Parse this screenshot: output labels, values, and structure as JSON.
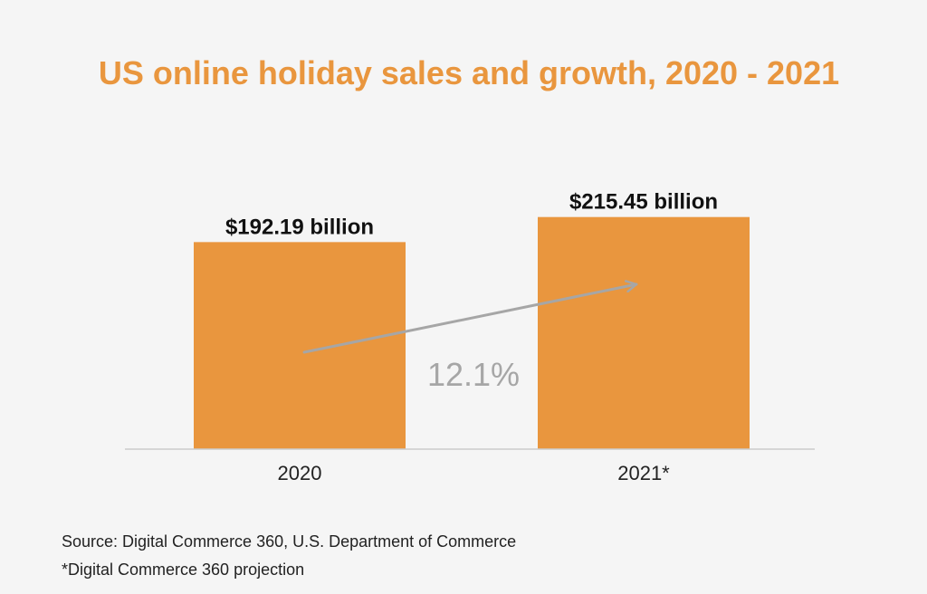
{
  "chart_data": {
    "type": "bar",
    "title": "US online holiday sales and growth, 2020 - 2021",
    "categories": [
      "2020",
      "2021*"
    ],
    "values": [
      192.19,
      215.45
    ],
    "unit": "billion USD",
    "data_labels": [
      "$192.19 billion",
      "$215.45 billion"
    ],
    "growth_annotation": "12.1%",
    "ylim": [
      0,
      232
    ],
    "grid": false,
    "legend": "none"
  },
  "notes": {
    "source": "Source: Digital Commerce 360, U.S. Department of Commerce",
    "projection": "*Digital Commerce 360 projection"
  },
  "colors": {
    "bar": "#e9963e",
    "title": "#e9963e",
    "arrow": "#a6a6a6",
    "axis": "#cccccc",
    "background": "#f5f5f5"
  }
}
